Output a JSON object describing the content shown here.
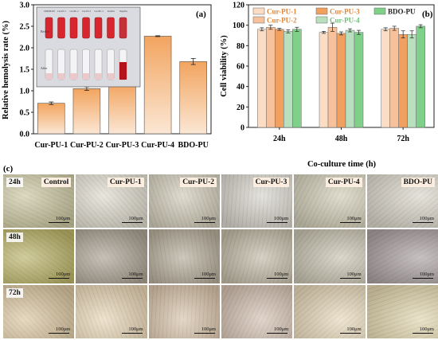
{
  "panel_labels": {
    "a": "(a)",
    "b": "(b)",
    "c": "(c)"
  },
  "inset": {
    "before": "Before",
    "after": "After",
    "tube_labels": [
      "DMEM-PD",
      "Cur-PU-1",
      "Cur-PU-2",
      "Cur-PU-3",
      "Cur-PU-4",
      "Positive",
      "Negative"
    ]
  },
  "chart_data": [
    {
      "type": "bar",
      "title": "",
      "xlabel": "",
      "ylabel": "Relative hemolysis rate (%)",
      "categories": [
        "Cur-PU-1",
        "Cur-PU-2",
        "Cur-PU-3",
        "Cur-PU-4",
        "BDO-PU"
      ],
      "values": [
        0.71,
        1.05,
        1.17,
        2.27,
        1.68
      ],
      "errors": [
        0.03,
        0.04,
        0.04,
        0.01,
        0.07
      ],
      "ylim": [
        0,
        3.0
      ],
      "yticks": [
        "0.0",
        "0.5",
        "1.0",
        "1.5",
        "2.0",
        "2.5",
        "3.0"
      ],
      "color": "#f2a45f"
    },
    {
      "type": "bar",
      "title": "",
      "xlabel": "Co-culture time (h)",
      "ylabel": "Cell viability (%)",
      "categories": [
        "24h",
        "48h",
        "72h"
      ],
      "ylim": [
        0,
        120
      ],
      "yticks": [
        "0",
        "20",
        "40",
        "60",
        "80",
        "100",
        "120"
      ],
      "legend_position": "top",
      "series": [
        {
          "name": "Cur-PU-1",
          "color": "#fbdcc4",
          "values": [
            96,
            93,
            96
          ],
          "errors": [
            1.5,
            1.0,
            1.5
          ]
        },
        {
          "name": "Cur-PU-2",
          "color": "#f7c29b",
          "values": [
            98,
            98,
            97
          ],
          "errors": [
            2.0,
            4.0,
            2.0
          ]
        },
        {
          "name": "Cur-PU-3",
          "color": "#f2a060",
          "values": [
            96,
            92,
            91
          ],
          "errors": [
            1.0,
            1.5,
            3.5
          ]
        },
        {
          "name": "Cur-PU-4",
          "color": "#b9e0be",
          "values": [
            94,
            95,
            91
          ],
          "errors": [
            1.5,
            1.5,
            3.5
          ]
        },
        {
          "name": "BDO-PU",
          "color": "#7fd089",
          "values": [
            96,
            93,
            99
          ],
          "errors": [
            2.0,
            2.0,
            1.5
          ]
        }
      ]
    }
  ],
  "micrograph_grid": {
    "groups": [
      "Control",
      "Cur-PU-1",
      "Cur-PU-2",
      "Cur-PU-3",
      "Cur-PU-4",
      "BDO-PU"
    ],
    "times": [
      "24h",
      "48h",
      "72h"
    ],
    "scale_label": "100μm",
    "tints": [
      [
        "#c9c5a0",
        "#ddd9cc",
        "#cfcab8",
        "#d5d3c9",
        "#cfcbb6",
        "#d8d4c8"
      ],
      [
        "#b9b268",
        "#a9a192",
        "#b4ab99",
        "#c1b9a6",
        "#c7c2b0",
        "#a9a0a0"
      ],
      [
        "#d9c5a0",
        "#e6d4b4",
        "#d7c3a9",
        "#d2bfb0",
        "#e5d6b8",
        "#e0d4ad"
      ]
    ]
  }
}
